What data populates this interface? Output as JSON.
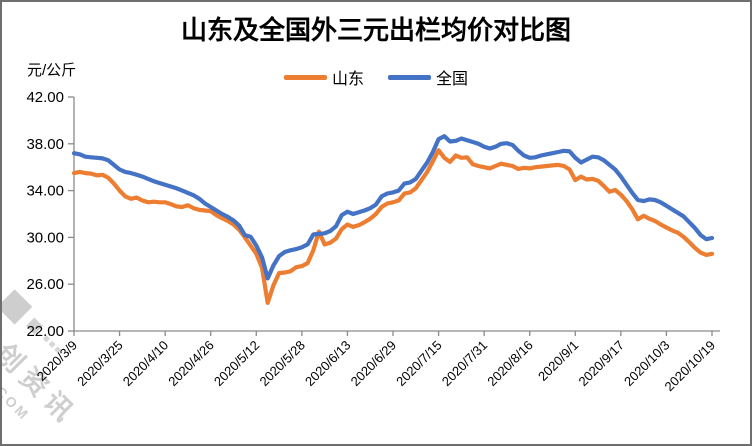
{
  "title": "山东及全国外三元出栏均价对比图",
  "y_axis": {
    "unit_label": "元/公斤",
    "tick_labels": [
      "42.00",
      "38.00",
      "34.00",
      "30.00",
      "26.00",
      "22.00"
    ],
    "tick_values": [
      42,
      38,
      34,
      30,
      26,
      22
    ]
  },
  "legend": {
    "items": [
      {
        "label": "山东",
        "color": "#ED7D31"
      },
      {
        "label": "全国",
        "color": "#4472C4"
      }
    ]
  },
  "watermark": {
    "brand": "卓创资讯",
    "site": "SCI99.COM"
  },
  "chart_data": {
    "type": "line",
    "title": "山东及全国外三元出栏均价对比图",
    "ylabel": "元/公斤",
    "ylim": [
      22,
      42
    ],
    "y_ticks": [
      22,
      26,
      30,
      34,
      38,
      42
    ],
    "grid": false,
    "legend_position": "top",
    "x_start": "2020/3/9",
    "x_end": "2020/10/19",
    "sample_interval_days": 2,
    "ticks_every_n_points": 8,
    "x_tick_labels": [
      "2020/3/9",
      "2020/3/25",
      "2020/4/10",
      "2020/4/26",
      "2020/5/12",
      "2020/5/28",
      "2020/6/13",
      "2020/6/29",
      "2020/7/15",
      "2020/7/31",
      "2020/8/16",
      "2020/9/1",
      "2020/9/17",
      "2020/10/3",
      "2020/10/19"
    ],
    "series": [
      {
        "name": "山东",
        "color": "#ED7D31",
        "values": [
          35.5,
          35.6,
          35.5,
          35.45,
          35.3,
          35.35,
          35.1,
          34.6,
          34.0,
          33.5,
          33.3,
          33.4,
          33.15,
          33.0,
          33.05,
          33.0,
          33.0,
          32.85,
          32.65,
          32.6,
          32.75,
          32.5,
          32.35,
          32.3,
          32.25,
          31.9,
          31.65,
          31.4,
          31.1,
          30.65,
          30.0,
          29.3,
          28.6,
          27.4,
          24.4,
          25.9,
          26.95,
          27.0,
          27.1,
          27.45,
          27.55,
          27.8,
          28.9,
          30.5,
          29.4,
          29.55,
          29.9,
          30.7,
          31.1,
          30.9,
          31.05,
          31.3,
          31.6,
          32.0,
          32.6,
          32.9,
          33.0,
          33.15,
          33.75,
          33.85,
          34.2,
          34.9,
          35.6,
          36.5,
          37.45,
          36.8,
          36.45,
          37.0,
          36.8,
          36.85,
          36.25,
          36.1,
          36.0,
          35.9,
          36.1,
          36.3,
          36.2,
          36.1,
          35.85,
          35.95,
          35.9,
          36.0,
          36.05,
          36.1,
          36.15,
          36.2,
          36.1,
          35.8,
          34.9,
          35.2,
          34.95,
          35.0,
          34.85,
          34.4,
          33.9,
          34.05,
          33.65,
          33.1,
          32.4,
          31.55,
          31.85,
          31.6,
          31.4,
          31.1,
          30.85,
          30.6,
          30.4,
          30.05,
          29.6,
          29.1,
          28.7,
          28.5,
          28.6
        ]
      },
      {
        "name": "全国",
        "color": "#4472C4",
        "values": [
          37.2,
          37.1,
          36.9,
          36.85,
          36.8,
          36.75,
          36.6,
          36.2,
          35.8,
          35.6,
          35.5,
          35.35,
          35.2,
          35.0,
          34.8,
          34.65,
          34.5,
          34.35,
          34.2,
          34.0,
          33.8,
          33.6,
          33.3,
          32.9,
          32.6,
          32.3,
          32.0,
          31.75,
          31.45,
          31.0,
          30.2,
          30.05,
          29.3,
          28.3,
          26.5,
          27.6,
          28.4,
          28.75,
          28.9,
          29.0,
          29.15,
          29.4,
          30.25,
          30.3,
          30.35,
          30.55,
          30.95,
          31.9,
          32.2,
          32.0,
          32.15,
          32.3,
          32.5,
          32.8,
          33.5,
          33.75,
          33.85,
          34.0,
          34.6,
          34.7,
          35.0,
          35.7,
          36.4,
          37.3,
          38.4,
          38.65,
          38.2,
          38.25,
          38.45,
          38.3,
          38.15,
          38.0,
          37.75,
          37.6,
          37.75,
          38.0,
          38.05,
          37.9,
          37.4,
          37.0,
          36.8,
          36.85,
          37.0,
          37.1,
          37.2,
          37.3,
          37.4,
          37.35,
          36.8,
          36.4,
          36.65,
          36.9,
          36.85,
          36.6,
          36.2,
          35.8,
          35.2,
          34.5,
          33.8,
          33.2,
          33.1,
          33.25,
          33.2,
          33.0,
          32.7,
          32.4,
          32.1,
          31.8,
          31.3,
          30.8,
          30.2,
          29.85,
          29.95
        ]
      }
    ]
  }
}
